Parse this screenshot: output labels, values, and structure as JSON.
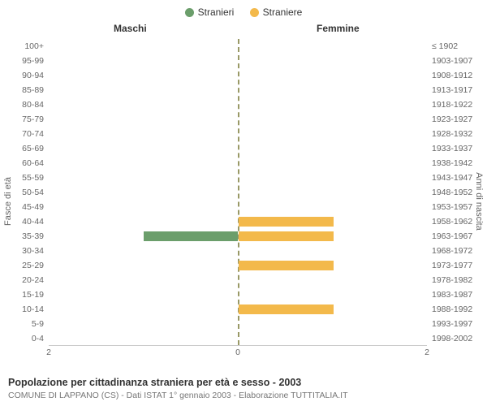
{
  "legend": {
    "male": {
      "label": "Stranieri",
      "color": "#6b9e6b"
    },
    "female": {
      "label": "Straniere",
      "color": "#f3b94b"
    }
  },
  "headers": {
    "male": "Maschi",
    "female": "Femmine"
  },
  "axis_labels": {
    "left": "Fasce di età",
    "right": "Anni di nascita"
  },
  "chart": {
    "type": "population-pyramid",
    "x_max": 2,
    "x_ticks": [
      2,
      0,
      2
    ],
    "background_color": "#ffffff",
    "center_line_color": "#999966",
    "label_fontsize": 10.5,
    "rows": [
      {
        "age": "100+",
        "birth": "≤ 1902",
        "m": 0,
        "f": 0
      },
      {
        "age": "95-99",
        "birth": "1903-1907",
        "m": 0,
        "f": 0
      },
      {
        "age": "90-94",
        "birth": "1908-1912",
        "m": 0,
        "f": 0
      },
      {
        "age": "85-89",
        "birth": "1913-1917",
        "m": 0,
        "f": 0
      },
      {
        "age": "80-84",
        "birth": "1918-1922",
        "m": 0,
        "f": 0
      },
      {
        "age": "75-79",
        "birth": "1923-1927",
        "m": 0,
        "f": 0
      },
      {
        "age": "70-74",
        "birth": "1928-1932",
        "m": 0,
        "f": 0
      },
      {
        "age": "65-69",
        "birth": "1933-1937",
        "m": 0,
        "f": 0
      },
      {
        "age": "60-64",
        "birth": "1938-1942",
        "m": 0,
        "f": 0
      },
      {
        "age": "55-59",
        "birth": "1943-1947",
        "m": 0,
        "f": 0
      },
      {
        "age": "50-54",
        "birth": "1948-1952",
        "m": 0,
        "f": 0
      },
      {
        "age": "45-49",
        "birth": "1953-1957",
        "m": 0,
        "f": 0
      },
      {
        "age": "40-44",
        "birth": "1958-1962",
        "m": 0,
        "f": 1
      },
      {
        "age": "35-39",
        "birth": "1963-1967",
        "m": 1,
        "f": 1
      },
      {
        "age": "30-34",
        "birth": "1968-1972",
        "m": 0,
        "f": 0
      },
      {
        "age": "25-29",
        "birth": "1973-1977",
        "m": 0,
        "f": 1
      },
      {
        "age": "20-24",
        "birth": "1978-1982",
        "m": 0,
        "f": 0
      },
      {
        "age": "15-19",
        "birth": "1983-1987",
        "m": 0,
        "f": 0
      },
      {
        "age": "10-14",
        "birth": "1988-1992",
        "m": 0,
        "f": 1
      },
      {
        "age": "5-9",
        "birth": "1993-1997",
        "m": 0,
        "f": 0
      },
      {
        "age": "0-4",
        "birth": "1998-2002",
        "m": 0,
        "f": 0
      }
    ]
  },
  "footer": {
    "title": "Popolazione per cittadinanza straniera per età e sesso - 2003",
    "subtitle": "COMUNE DI LAPPANO (CS) - Dati ISTAT 1° gennaio 2003 - Elaborazione TUTTITALIA.IT"
  }
}
